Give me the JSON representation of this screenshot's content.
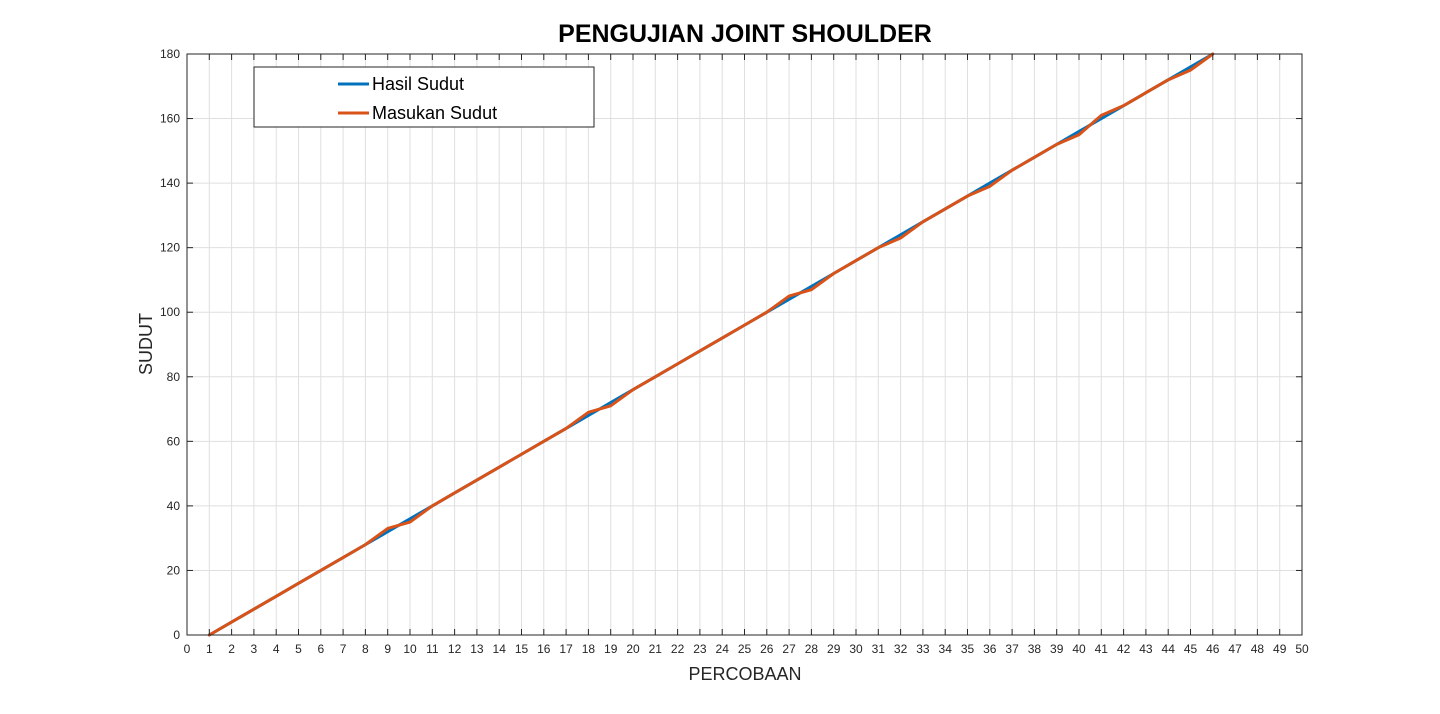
{
  "chart_data": {
    "type": "line",
    "title": "PENGUJIAN JOINT SHOULDER",
    "xlabel": "PERCOBAAN",
    "ylabel": "SUDUT",
    "xlim": [
      0,
      50
    ],
    "ylim": [
      0,
      180
    ],
    "xticks": [
      0,
      1,
      2,
      3,
      4,
      5,
      6,
      7,
      8,
      9,
      10,
      11,
      12,
      13,
      14,
      15,
      16,
      17,
      18,
      19,
      20,
      21,
      22,
      23,
      24,
      25,
      26,
      27,
      28,
      29,
      30,
      31,
      32,
      33,
      34,
      35,
      36,
      37,
      38,
      39,
      40,
      41,
      42,
      43,
      44,
      45,
      46,
      47,
      48,
      49,
      50
    ],
    "yticks": [
      0,
      20,
      40,
      60,
      80,
      100,
      120,
      140,
      160,
      180
    ],
    "grid": true,
    "legend_position": "top-left",
    "x": [
      1,
      2,
      3,
      4,
      5,
      6,
      7,
      8,
      9,
      10,
      11,
      12,
      13,
      14,
      15,
      16,
      17,
      18,
      19,
      20,
      21,
      22,
      23,
      24,
      25,
      26,
      27,
      28,
      29,
      30,
      31,
      32,
      33,
      34,
      35,
      36,
      37,
      38,
      39,
      40,
      41,
      42,
      43,
      44,
      45,
      46
    ],
    "series": [
      {
        "name": "Hasil Sudut",
        "color": "#0072bd",
        "values": [
          0,
          4,
          8,
          12,
          16,
          20,
          24,
          28,
          32,
          36,
          40,
          44,
          48,
          52,
          56,
          60,
          64,
          68,
          72,
          76,
          80,
          84,
          88,
          92,
          96,
          100,
          104,
          108,
          112,
          116,
          120,
          124,
          128,
          132,
          136,
          140,
          144,
          148,
          152,
          156,
          160,
          164,
          168,
          172,
          176,
          180
        ]
      },
      {
        "name": "Masukan Sudut",
        "color": "#d95319",
        "values": [
          0,
          4,
          8,
          12,
          16,
          20,
          24,
          28,
          33,
          35,
          40,
          44,
          48,
          52,
          56,
          60,
          64,
          69,
          71,
          76,
          80,
          84,
          88,
          92,
          96,
          100,
          105,
          107,
          112,
          116,
          120,
          123,
          128,
          132,
          136,
          139,
          144,
          148,
          152,
          155,
          161,
          164,
          168,
          172,
          175,
          180
        ]
      }
    ]
  }
}
